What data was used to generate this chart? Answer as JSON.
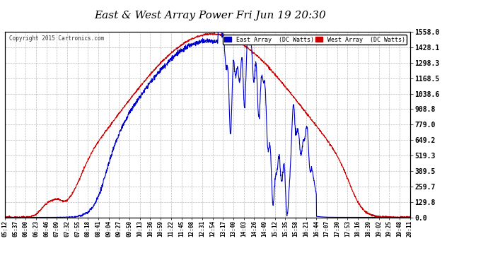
{
  "title": "East & West Array Power Fri Jun 19 20:30",
  "copyright": "Copyright 2015 Cartronics.com",
  "east_color": "#0000cc",
  "west_color": "#cc0000",
  "background_color": "#ffffff",
  "plot_bg_color": "#ffffff",
  "grid_color": "#bbbbbb",
  "yticks": [
    0.0,
    129.8,
    259.7,
    389.5,
    519.3,
    649.2,
    779.0,
    908.8,
    1038.6,
    1168.5,
    1298.3,
    1428.1,
    1558.0
  ],
  "ymax": 1558.0,
  "ymin": 0.0,
  "xtick_labels": [
    "05:12",
    "05:37",
    "06:00",
    "06:23",
    "06:46",
    "07:09",
    "07:32",
    "07:55",
    "08:18",
    "08:41",
    "09:04",
    "09:27",
    "09:50",
    "10:13",
    "10:36",
    "10:59",
    "11:22",
    "11:45",
    "12:08",
    "12:31",
    "12:54",
    "13:17",
    "13:40",
    "14:03",
    "14:26",
    "14:49",
    "15:12",
    "15:35",
    "15:58",
    "16:21",
    "16:44",
    "17:07",
    "17:30",
    "17:53",
    "18:16",
    "18:39",
    "19:02",
    "19:25",
    "19:48",
    "20:11"
  ],
  "legend_east": "East Array  (DC Watts)",
  "legend_west": "West Array  (DC Watts)"
}
